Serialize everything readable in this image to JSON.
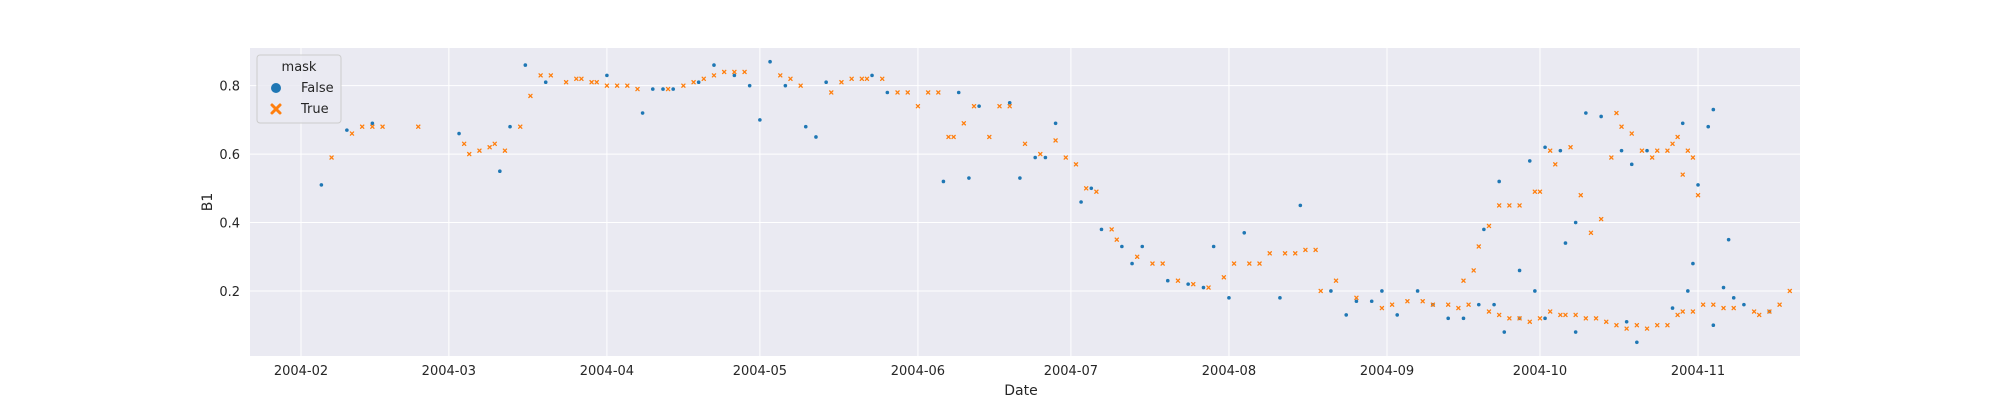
{
  "chart_data": {
    "type": "scatter",
    "xlabel": "Date",
    "ylabel": "B1",
    "x_ticks": [
      "2004-02",
      "2004-03",
      "2004-04",
      "2004-05",
      "2004-06",
      "2004-07",
      "2004-08",
      "2004-09",
      "2004-10",
      "2004-11"
    ],
    "y_ticks": [
      "0.2",
      "0.4",
      "0.6",
      "0.8"
    ],
    "ylim": [
      0.01,
      0.91
    ],
    "xlim": [
      "2004-01-22",
      "2004-11-21"
    ],
    "grid": true,
    "legend": {
      "title": "mask",
      "placement": "top-left"
    },
    "colors": {
      "plot_bg": "#eaeaf2",
      "grid": "#ffffff",
      "false": "#1f77b4",
      "true": "#ff7f0e"
    },
    "series": [
      {
        "name": "False",
        "marker": "circle",
        "points": [
          [
            "2004-02-05",
            0.51
          ],
          [
            "2004-02-10",
            0.67
          ],
          [
            "2004-02-15",
            0.69
          ],
          [
            "2004-03-03",
            0.66
          ],
          [
            "2004-03-11",
            0.55
          ],
          [
            "2004-03-13",
            0.68
          ],
          [
            "2004-03-16",
            0.86
          ],
          [
            "2004-03-20",
            0.81
          ],
          [
            "2004-04-01",
            0.83
          ],
          [
            "2004-04-08",
            0.72
          ],
          [
            "2004-04-10",
            0.79
          ],
          [
            "2004-04-12",
            0.79
          ],
          [
            "2004-04-14",
            0.79
          ],
          [
            "2004-04-19",
            0.81
          ],
          [
            "2004-04-22",
            0.86
          ],
          [
            "2004-04-26",
            0.83
          ],
          [
            "2004-04-29",
            0.8
          ],
          [
            "2004-05-01",
            0.7
          ],
          [
            "2004-05-03",
            0.87
          ],
          [
            "2004-05-06",
            0.8
          ],
          [
            "2004-05-10",
            0.68
          ],
          [
            "2004-05-12",
            0.65
          ],
          [
            "2004-05-14",
            0.81
          ],
          [
            "2004-05-23",
            0.83
          ],
          [
            "2004-05-26",
            0.78
          ],
          [
            "2004-06-06",
            0.52
          ],
          [
            "2004-06-09",
            0.78
          ],
          [
            "2004-06-11",
            0.53
          ],
          [
            "2004-06-13",
            0.74
          ],
          [
            "2004-06-19",
            0.75
          ],
          [
            "2004-06-21",
            0.53
          ],
          [
            "2004-06-24",
            0.59
          ],
          [
            "2004-06-26",
            0.59
          ],
          [
            "2004-06-28",
            0.69
          ],
          [
            "2004-07-03",
            0.46
          ],
          [
            "2004-07-05",
            0.5
          ],
          [
            "2004-07-07",
            0.38
          ],
          [
            "2004-07-11",
            0.33
          ],
          [
            "2004-07-13",
            0.28
          ],
          [
            "2004-07-15",
            0.33
          ],
          [
            "2004-07-20",
            0.23
          ],
          [
            "2004-07-24",
            0.22
          ],
          [
            "2004-07-27",
            0.21
          ],
          [
            "2004-07-29",
            0.33
          ],
          [
            "2004-08-01",
            0.18
          ],
          [
            "2004-08-04",
            0.37
          ],
          [
            "2004-08-11",
            0.18
          ],
          [
            "2004-08-15",
            0.45
          ],
          [
            "2004-08-21",
            0.2
          ],
          [
            "2004-08-24",
            0.13
          ],
          [
            "2004-08-26",
            0.17
          ],
          [
            "2004-08-29",
            0.17
          ],
          [
            "2004-08-31",
            0.2
          ],
          [
            "2004-09-03",
            0.13
          ],
          [
            "2004-09-07",
            0.2
          ],
          [
            "2004-09-10",
            0.16
          ],
          [
            "2004-09-13",
            0.12
          ],
          [
            "2004-09-16",
            0.12
          ],
          [
            "2004-09-19",
            0.16
          ],
          [
            "2004-09-22",
            0.16
          ],
          [
            "2004-09-24",
            0.08
          ],
          [
            "2004-09-27",
            0.12
          ],
          [
            "2004-09-30",
            0.2
          ],
          [
            "2004-10-02",
            0.12
          ],
          [
            "2004-10-08",
            0.08
          ],
          [
            "2004-10-18",
            0.11
          ],
          [
            "2004-10-20",
            0.05
          ],
          [
            "2004-10-27",
            0.15
          ],
          [
            "2004-10-30",
            0.2
          ],
          [
            "2004-11-04",
            0.1
          ],
          [
            "2004-11-08",
            0.18
          ],
          [
            "2004-11-10",
            0.16
          ],
          [
            "2004-11-15",
            0.14
          ],
          [
            "2004-09-20",
            0.38
          ],
          [
            "2004-09-23",
            0.52
          ],
          [
            "2004-09-27",
            0.26
          ],
          [
            "2004-09-29",
            0.58
          ],
          [
            "2004-10-02",
            0.62
          ],
          [
            "2004-10-05",
            0.61
          ],
          [
            "2004-10-06",
            0.34
          ],
          [
            "2004-10-08",
            0.4
          ],
          [
            "2004-10-10",
            0.72
          ],
          [
            "2004-10-13",
            0.71
          ],
          [
            "2004-10-17",
            0.61
          ],
          [
            "2004-10-19",
            0.57
          ],
          [
            "2004-10-22",
            0.61
          ],
          [
            "2004-10-29",
            0.69
          ],
          [
            "2004-10-31",
            0.28
          ],
          [
            "2004-11-01",
            0.51
          ],
          [
            "2004-11-03",
            0.68
          ],
          [
            "2004-11-04",
            0.73
          ],
          [
            "2004-11-06",
            0.21
          ],
          [
            "2004-11-07",
            0.35
          ]
        ]
      },
      {
        "name": "True",
        "marker": "x",
        "points": [
          [
            "2004-02-07",
            0.59
          ],
          [
            "2004-02-11",
            0.66
          ],
          [
            "2004-02-13",
            0.68
          ],
          [
            "2004-02-15",
            0.68
          ],
          [
            "2004-02-17",
            0.68
          ],
          [
            "2004-02-24",
            0.68
          ],
          [
            "2004-03-04",
            0.63
          ],
          [
            "2004-03-05",
            0.6
          ],
          [
            "2004-03-07",
            0.61
          ],
          [
            "2004-03-09",
            0.62
          ],
          [
            "2004-03-10",
            0.63
          ],
          [
            "2004-03-12",
            0.61
          ],
          [
            "2004-03-15",
            0.68
          ],
          [
            "2004-03-17",
            0.77
          ],
          [
            "2004-03-19",
            0.83
          ],
          [
            "2004-03-21",
            0.83
          ],
          [
            "2004-03-24",
            0.81
          ],
          [
            "2004-03-26",
            0.82
          ],
          [
            "2004-03-27",
            0.82
          ],
          [
            "2004-03-29",
            0.81
          ],
          [
            "2004-03-30",
            0.81
          ],
          [
            "2004-04-01",
            0.8
          ],
          [
            "2004-04-03",
            0.8
          ],
          [
            "2004-04-05",
            0.8
          ],
          [
            "2004-04-07",
            0.79
          ],
          [
            "2004-04-13",
            0.79
          ],
          [
            "2004-04-16",
            0.8
          ],
          [
            "2004-04-18",
            0.81
          ],
          [
            "2004-04-20",
            0.82
          ],
          [
            "2004-04-22",
            0.83
          ],
          [
            "2004-04-24",
            0.84
          ],
          [
            "2004-04-26",
            0.84
          ],
          [
            "2004-04-28",
            0.84
          ],
          [
            "2004-05-05",
            0.83
          ],
          [
            "2004-05-07",
            0.82
          ],
          [
            "2004-05-09",
            0.8
          ],
          [
            "2004-05-15",
            0.78
          ],
          [
            "2004-05-17",
            0.81
          ],
          [
            "2004-05-19",
            0.82
          ],
          [
            "2004-05-21",
            0.82
          ],
          [
            "2004-05-22",
            0.82
          ],
          [
            "2004-05-25",
            0.82
          ],
          [
            "2004-05-28",
            0.78
          ],
          [
            "2004-05-30",
            0.78
          ],
          [
            "2004-06-01",
            0.74
          ],
          [
            "2004-06-03",
            0.78
          ],
          [
            "2004-06-05",
            0.78
          ],
          [
            "2004-06-07",
            0.65
          ],
          [
            "2004-06-08",
            0.65
          ],
          [
            "2004-06-10",
            0.69
          ],
          [
            "2004-06-12",
            0.74
          ],
          [
            "2004-06-15",
            0.65
          ],
          [
            "2004-06-17",
            0.74
          ],
          [
            "2004-06-19",
            0.74
          ],
          [
            "2004-06-22",
            0.63
          ],
          [
            "2004-06-25",
            0.6
          ],
          [
            "2004-06-28",
            0.64
          ],
          [
            "2004-06-30",
            0.59
          ],
          [
            "2004-07-02",
            0.57
          ],
          [
            "2004-07-04",
            0.5
          ],
          [
            "2004-07-06",
            0.49
          ],
          [
            "2004-07-09",
            0.38
          ],
          [
            "2004-07-10",
            0.35
          ],
          [
            "2004-07-14",
            0.3
          ],
          [
            "2004-07-17",
            0.28
          ],
          [
            "2004-07-19",
            0.28
          ],
          [
            "2004-07-22",
            0.23
          ],
          [
            "2004-07-25",
            0.22
          ],
          [
            "2004-07-28",
            0.21
          ],
          [
            "2004-07-31",
            0.24
          ],
          [
            "2004-08-02",
            0.28
          ],
          [
            "2004-08-05",
            0.28
          ],
          [
            "2004-08-07",
            0.28
          ],
          [
            "2004-08-09",
            0.31
          ],
          [
            "2004-08-12",
            0.31
          ],
          [
            "2004-08-14",
            0.31
          ],
          [
            "2004-08-16",
            0.32
          ],
          [
            "2004-08-18",
            0.32
          ],
          [
            "2004-08-19",
            0.2
          ],
          [
            "2004-08-22",
            0.23
          ],
          [
            "2004-08-26",
            0.18
          ],
          [
            "2004-08-31",
            0.15
          ],
          [
            "2004-09-02",
            0.16
          ],
          [
            "2004-09-05",
            0.17
          ],
          [
            "2004-09-08",
            0.17
          ],
          [
            "2004-09-10",
            0.16
          ],
          [
            "2004-09-13",
            0.16
          ],
          [
            "2004-09-15",
            0.15
          ],
          [
            "2004-09-17",
            0.16
          ],
          [
            "2004-09-21",
            0.14
          ],
          [
            "2004-09-23",
            0.13
          ],
          [
            "2004-09-25",
            0.12
          ],
          [
            "2004-09-27",
            0.12
          ],
          [
            "2004-09-29",
            0.11
          ],
          [
            "2004-09-31",
            0.12
          ],
          [
            "2004-10-03",
            0.14
          ],
          [
            "2004-10-05",
            0.13
          ],
          [
            "2004-10-06",
            0.13
          ],
          [
            "2004-10-08",
            0.13
          ],
          [
            "2004-10-10",
            0.12
          ],
          [
            "2004-10-12",
            0.12
          ],
          [
            "2004-10-14",
            0.11
          ],
          [
            "2004-10-16",
            0.1
          ],
          [
            "2004-10-18",
            0.09
          ],
          [
            "2004-10-20",
            0.1
          ],
          [
            "2004-10-22",
            0.09
          ],
          [
            "2004-10-24",
            0.1
          ],
          [
            "2004-10-26",
            0.1
          ],
          [
            "2004-10-28",
            0.13
          ],
          [
            "2004-10-29",
            0.14
          ],
          [
            "2004-10-31",
            0.14
          ],
          [
            "2004-11-02",
            0.16
          ],
          [
            "2004-11-04",
            0.16
          ],
          [
            "2004-11-06",
            0.15
          ],
          [
            "2004-11-08",
            0.15
          ],
          [
            "2004-11-12",
            0.14
          ],
          [
            "2004-11-13",
            0.13
          ],
          [
            "2004-11-15",
            0.14
          ],
          [
            "2004-11-17",
            0.16
          ],
          [
            "2004-11-19",
            0.2
          ],
          [
            "2004-09-16",
            0.23
          ],
          [
            "2004-09-18",
            0.26
          ],
          [
            "2004-09-19",
            0.33
          ],
          [
            "2004-09-21",
            0.39
          ],
          [
            "2004-09-23",
            0.45
          ],
          [
            "2004-09-25",
            0.45
          ],
          [
            "2004-09-27",
            0.45
          ],
          [
            "2004-09-30",
            0.49
          ],
          [
            "2004-10-01",
            0.49
          ],
          [
            "2004-10-03",
            0.61
          ],
          [
            "2004-10-04",
            0.57
          ],
          [
            "2004-10-07",
            0.62
          ],
          [
            "2004-10-09",
            0.48
          ],
          [
            "2004-10-11",
            0.37
          ],
          [
            "2004-10-13",
            0.41
          ],
          [
            "2004-10-15",
            0.59
          ],
          [
            "2004-10-16",
            0.72
          ],
          [
            "2004-10-17",
            0.68
          ],
          [
            "2004-10-19",
            0.66
          ],
          [
            "2004-10-21",
            0.61
          ],
          [
            "2004-10-23",
            0.59
          ],
          [
            "2004-10-24",
            0.61
          ],
          [
            "2004-10-26",
            0.61
          ],
          [
            "2004-10-27",
            0.63
          ],
          [
            "2004-10-28",
            0.65
          ],
          [
            "2004-10-29",
            0.54
          ],
          [
            "2004-10-30",
            0.61
          ],
          [
            "2004-10-31",
            0.59
          ],
          [
            "2004-11-01",
            0.48
          ]
        ]
      }
    ]
  }
}
